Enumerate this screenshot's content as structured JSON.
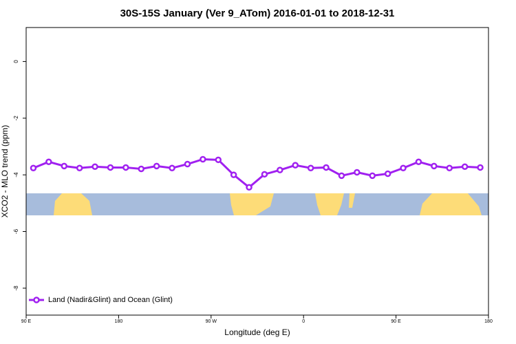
{
  "chart_data": {
    "type": "line",
    "title": "30S-15S January (Ver 9_ATom)   2016-01-01 to 2018-12-31",
    "x_label": "Longitude (deg E)",
    "y_label": "XCO2 - MLO trend (ppm)",
    "x": [
      97,
      112,
      127,
      142,
      157,
      172,
      187,
      202,
      217,
      232,
      247,
      262,
      277,
      292,
      307,
      322,
      337,
      352,
      367,
      382,
      397,
      412,
      427,
      442,
      457,
      472,
      487,
      502,
      517,
      532
    ],
    "series": [
      {
        "name": "Land (Nadir&Glint) and Ocean (Glint)",
        "color": "#a020f0",
        "values": [
          -3.76,
          -3.54,
          -3.69,
          -3.76,
          -3.71,
          -3.74,
          -3.74,
          -3.79,
          -3.69,
          -3.76,
          -3.62,
          -3.45,
          -3.47,
          -4.0,
          -4.44,
          -3.98,
          -3.83,
          -3.66,
          -3.76,
          -3.74,
          -4.03,
          -3.91,
          -4.03,
          -3.96,
          -3.76,
          -3.54,
          -3.69,
          -3.76,
          -3.71,
          -3.74
        ]
      }
    ],
    "xlim": [
      90,
      540
    ],
    "xticks": [
      {
        "value": 90,
        "label": "90 E"
      },
      180,
      {
        "value": 270,
        "label": "90 W"
      },
      {
        "value": 360,
        "label": "0"
      },
      {
        "value": 450,
        "label": "90 E"
      },
      {
        "value": 540,
        "label": "180"
      }
    ],
    "ylim": [
      -8.95,
      1.2
    ],
    "yticks": [
      0,
      -2,
      -4,
      -6,
      -8
    ],
    "legend": "bottom-left"
  }
}
